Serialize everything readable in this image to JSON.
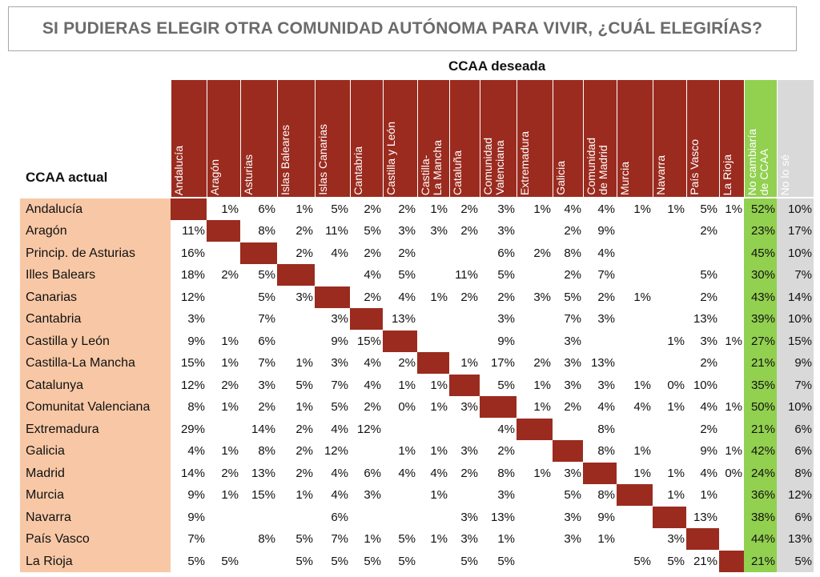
{
  "title": "SI PUDIERAS ELEGIR OTRA COMUNIDAD AUTÓNOMA PARA VIVIR, ¿CUÁL ELEGIRÍAS?",
  "columns_axis_label": "CCAA deseada",
  "rows_axis_label": "CCAA actual",
  "columns": [
    "Andalucía",
    "Aragón",
    "Asturias",
    "Islas Baleares",
    "Islas Canarias",
    "Cantabria",
    "Castilla y León",
    "Castilla-\nLa Mancha",
    "Cataluña",
    "Comunidad\nValenciana",
    "Extremadura",
    "Galicia",
    "Comunidad\nde Madrid",
    "Murcia",
    "Navarra",
    "País Vasco",
    "La Rioja",
    "No cambiaría\nde CCAA",
    "No lo sé"
  ],
  "rows": [
    {
      "label": "Andalucía",
      "values": [
        "",
        "1%",
        "6%",
        "1%",
        "5%",
        "2%",
        "2%",
        "1%",
        "2%",
        "3%",
        "1%",
        "4%",
        "4%",
        "1%",
        "1%",
        "5%",
        "1%",
        "52%",
        "10%"
      ]
    },
    {
      "label": "Aragón",
      "values": [
        "11%",
        "",
        "8%",
        "2%",
        "11%",
        "5%",
        "3%",
        "3%",
        "2%",
        "3%",
        "",
        "2%",
        "9%",
        "",
        "",
        "2%",
        "",
        "23%",
        "17%"
      ]
    },
    {
      "label": "Princip. de Asturias",
      "values": [
        "16%",
        "",
        "",
        "2%",
        "4%",
        "2%",
        "2%",
        "",
        "",
        "6%",
        "2%",
        "8%",
        "4%",
        "",
        "",
        "",
        "",
        "45%",
        "10%"
      ]
    },
    {
      "label": "Illes Balears",
      "values": [
        "18%",
        "2%",
        "5%",
        "",
        "",
        "4%",
        "5%",
        "",
        "11%",
        "5%",
        "",
        "2%",
        "7%",
        "",
        "",
        "5%",
        "",
        "30%",
        "7%"
      ]
    },
    {
      "label": "Canarias",
      "values": [
        "12%",
        "",
        "5%",
        "3%",
        "",
        "2%",
        "4%",
        "1%",
        "2%",
        "2%",
        "3%",
        "5%",
        "2%",
        "1%",
        "",
        "2%",
        "",
        "43%",
        "14%"
      ]
    },
    {
      "label": "Cantabria",
      "values": [
        "3%",
        "",
        "7%",
        "",
        "3%",
        "",
        "13%",
        "",
        "",
        "3%",
        "",
        "7%",
        "3%",
        "",
        "",
        "13%",
        "",
        "39%",
        "10%"
      ]
    },
    {
      "label": "Castilla y León",
      "values": [
        "9%",
        "1%",
        "6%",
        "",
        "9%",
        "15%",
        "",
        "",
        "",
        "9%",
        "",
        "3%",
        "",
        "",
        "1%",
        "3%",
        "1%",
        "27%",
        "15%"
      ]
    },
    {
      "label": "Castilla-La Mancha",
      "values": [
        "15%",
        "1%",
        "7%",
        "1%",
        "3%",
        "4%",
        "2%",
        "",
        "1%",
        "17%",
        "2%",
        "3%",
        "13%",
        "",
        "",
        "2%",
        "",
        "21%",
        "9%"
      ]
    },
    {
      "label": "Catalunya",
      "values": [
        "12%",
        "2%",
        "3%",
        "5%",
        "7%",
        "4%",
        "1%",
        "1%",
        "",
        "5%",
        "1%",
        "3%",
        "3%",
        "1%",
        "0%",
        "10%",
        "",
        "35%",
        "7%"
      ]
    },
    {
      "label": "Comunitat Valenciana",
      "values": [
        "8%",
        "1%",
        "2%",
        "1%",
        "5%",
        "2%",
        "0%",
        "1%",
        "3%",
        "",
        "1%",
        "2%",
        "4%",
        "4%",
        "1%",
        "4%",
        "1%",
        "50%",
        "10%"
      ]
    },
    {
      "label": "Extremadura",
      "values": [
        "29%",
        "",
        "14%",
        "2%",
        "4%",
        "12%",
        "",
        "",
        "",
        "4%",
        "",
        "",
        "8%",
        "",
        "",
        "2%",
        "",
        "21%",
        "6%"
      ]
    },
    {
      "label": "Galicia",
      "values": [
        "4%",
        "1%",
        "8%",
        "2%",
        "12%",
        "",
        "1%",
        "1%",
        "3%",
        "2%",
        "",
        "",
        "8%",
        "1%",
        "",
        "9%",
        "1%",
        "42%",
        "6%"
      ]
    },
    {
      "label": "Madrid",
      "values": [
        "14%",
        "2%",
        "13%",
        "2%",
        "4%",
        "6%",
        "4%",
        "4%",
        "2%",
        "8%",
        "1%",
        "3%",
        "",
        "1%",
        "1%",
        "4%",
        "0%",
        "24%",
        "8%"
      ]
    },
    {
      "label": "Murcia",
      "values": [
        "9%",
        "1%",
        "15%",
        "1%",
        "4%",
        "3%",
        "",
        "1%",
        "",
        "3%",
        "",
        "5%",
        "8%",
        "",
        "1%",
        "1%",
        "",
        "36%",
        "12%"
      ]
    },
    {
      "label": "Navarra",
      "values": [
        "9%",
        "",
        "",
        "",
        "6%",
        "",
        "",
        "",
        "3%",
        "13%",
        "",
        "3%",
        "9%",
        "",
        "",
        "13%",
        "",
        "38%",
        "6%"
      ]
    },
    {
      "label": "País Vasco",
      "values": [
        "7%",
        "",
        "8%",
        "5%",
        "7%",
        "1%",
        "5%",
        "1%",
        "3%",
        "1%",
        "",
        "3%",
        "1%",
        "",
        "3%",
        "",
        "",
        "44%",
        "13%"
      ]
    },
    {
      "label": "La Rioja",
      "values": [
        "5%",
        "5%",
        "",
        "5%",
        "5%",
        "5%",
        "5%",
        "",
        "5%",
        "5%",
        "",
        "",
        "",
        "5%",
        "5%",
        "21%",
        "",
        "21%",
        "5%"
      ]
    }
  ],
  "colors": {
    "header": "#9b2b1f",
    "row_label_bg": "#f8c8a6",
    "no_change_col": "#92d050",
    "no_sabe_col": "#d9d9d9"
  }
}
